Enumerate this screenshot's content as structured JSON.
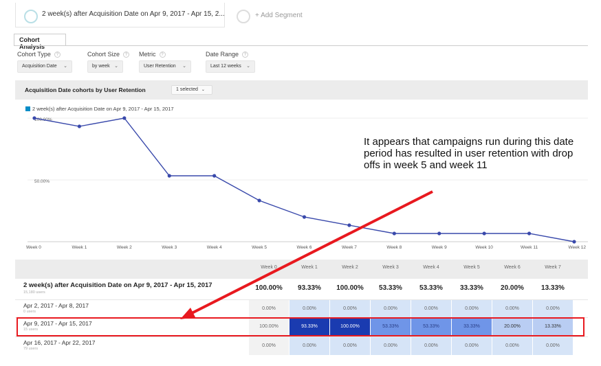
{
  "segments": [
    {
      "label": "2 week(s) after Acquisition Date on Apr 9, 2017 - Apr 15, 2..."
    },
    {
      "label": "+ Add Segment"
    }
  ],
  "tab": {
    "label": "Cohort Analysis"
  },
  "controls": [
    {
      "label": "Cohort Type",
      "value": "Acquisition Date"
    },
    {
      "label": "Cohort Size",
      "value": "by week"
    },
    {
      "label": "Metric",
      "value": "User Retention"
    },
    {
      "label": "Date Range",
      "value": "Last 12 weeks"
    }
  ],
  "graph_bar": {
    "title": "Acquisition Date cohorts by User Retention",
    "selected": "1 selected"
  },
  "legend": {
    "label": "2 week(s) after Acquisition Date on Apr 9, 2017 - Apr 15, 2017",
    "color": "#058dc7"
  },
  "annotation": "It appears that campaigns run during this date period has resulted in user retention with drop offs in week 5 and week 11",
  "chart_data": {
    "type": "line",
    "x": [
      "Week 0",
      "Week 1",
      "Week 2",
      "Week 3",
      "Week 4",
      "Week 5",
      "Week 6",
      "Week 7",
      "Week 8",
      "Week 9",
      "Week 10",
      "Week 11",
      "Week 12"
    ],
    "series": [
      {
        "name": "2 week(s) after Acquisition Date on Apr 9, 2017 - Apr 15, 2017",
        "values": [
          100,
          93.33,
          100,
          53.33,
          53.33,
          33.33,
          20,
          13.33,
          6.67,
          6.67,
          6.67,
          6.67,
          0
        ]
      }
    ],
    "yticks": [
      "100.00%",
      "50.00%"
    ],
    "ylim": [
      0,
      100
    ],
    "line_color": "#3949ab"
  },
  "table": {
    "headers": [
      "Week 0",
      "Week 1",
      "Week 2",
      "Week 3",
      "Week 4",
      "Week 5",
      "Week 6",
      "Week 7"
    ],
    "summary": {
      "label": "2 week(s) after Acquisition Date on Apr 9, 2017 - Apr 15, 2017",
      "users": "15,180 users",
      "values": [
        "100.00%",
        "93.33%",
        "100.00%",
        "53.33%",
        "53.33%",
        "33.33%",
        "20.00%",
        "13.33%"
      ]
    },
    "rows": [
      {
        "label": "Apr 2, 2017 - Apr 8, 2017",
        "users": "0 users",
        "values": [
          "0.00%",
          "0.00%",
          "0.00%",
          "0.00%",
          "0.00%",
          "0.00%",
          "0.00%",
          "0.00%"
        ]
      },
      {
        "label": "Apr 9, 2017 - Apr 15, 2017",
        "users": "15 users",
        "values": [
          "100.00%",
          "93.33%",
          "100.00%",
          "53.33%",
          "53.33%",
          "33.33%",
          "20.00%",
          "13.33%"
        ]
      },
      {
        "label": "Apr 16, 2017 - Apr 22, 2017",
        "users": "79 users",
        "values": [
          "0.00%",
          "0.00%",
          "0.00%",
          "0.00%",
          "0.00%",
          "0.00%",
          "0.00%",
          "0.00%"
        ]
      }
    ]
  },
  "colors": {
    "highlight": "#e8191f",
    "cell_light": "#d6e4f7",
    "cell_dark": "#1a3bb0",
    "cell_mid": "#6f95e8"
  }
}
